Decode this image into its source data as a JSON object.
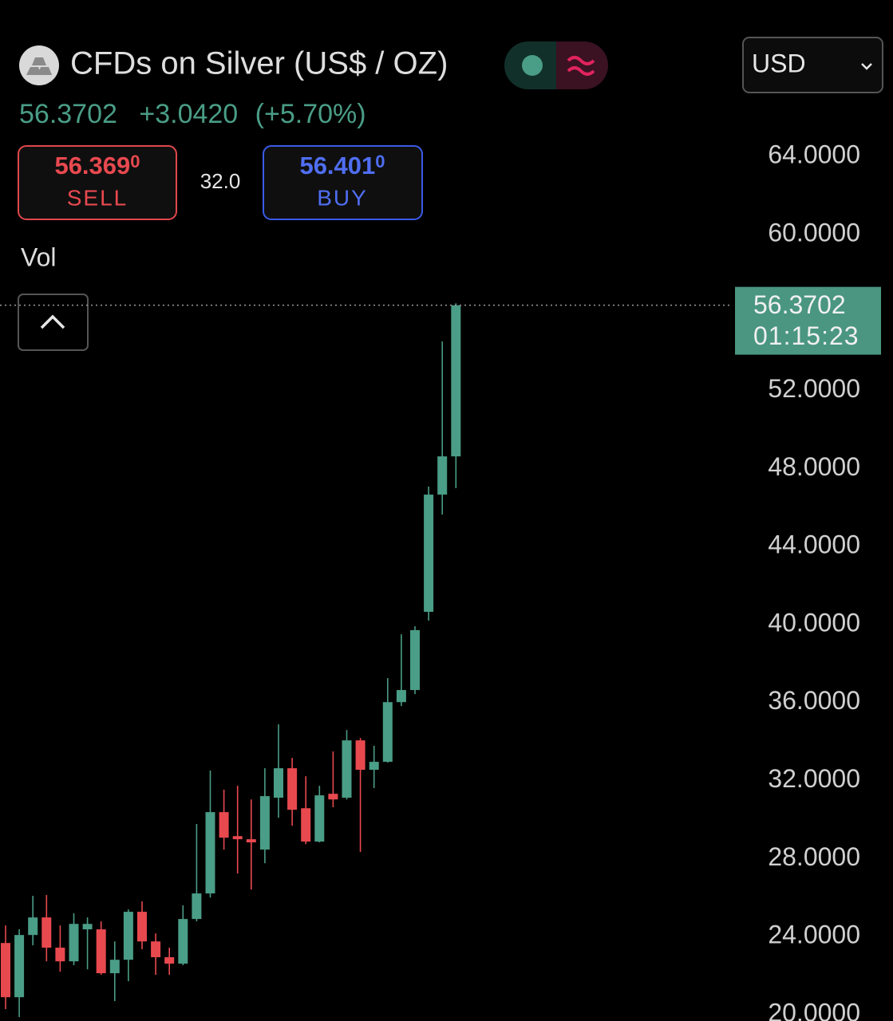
{
  "header": {
    "title": "CFDs on Silver (US$ / OZ)",
    "change": "+3.0420",
    "change_pct": "(+5.70%)",
    "sell_price": "56.369",
    "sell_price_sup": "0",
    "sell_label": "SELL",
    "spread": "32.0",
    "buy_price": "56.401",
    "buy_price_sup": "0",
    "buy_label": "BUY",
    "currency": "USD",
    "volume_label": "Vol"
  },
  "chart_data": {
    "type": "candlestick",
    "last_price": 56.3702,
    "countdown": "01:15:23",
    "up_color": "#4a9d86",
    "down_color": "#e8494f",
    "ylim": [
      19.67,
      72.02
    ],
    "yticks": [
      {
        "value": 20,
        "label": "20.0000"
      },
      {
        "value": 24,
        "label": "24.0000"
      },
      {
        "value": 28,
        "label": "28.0000"
      },
      {
        "value": 32,
        "label": "32.0000"
      },
      {
        "value": 36,
        "label": "36.0000"
      },
      {
        "value": 40,
        "label": "40.0000"
      },
      {
        "value": 44,
        "label": "44.0000"
      },
      {
        "value": 48,
        "label": "48.0000"
      },
      {
        "value": 52,
        "label": "52.0000"
      },
      {
        "value": 60,
        "label": "60.0000"
      },
      {
        "value": 64,
        "label": "64.0000"
      }
    ],
    "open": [
      23.67,
      20.89,
      24.08,
      24.98,
      23.43,
      22.73,
      24.37,
      24.37,
      22.12,
      22.81,
      25.27,
      23.75,
      22.94,
      22.61,
      24.9,
      26.21,
      30.38,
      29.15,
      28.99,
      28.46,
      31.12,
      32.63,
      30.58,
      28.87,
      31.32,
      31.12,
      34.06,
      32.55,
      32.96,
      36.02,
      36.64,
      40.65,
      46.66,
      48.62
    ],
    "high": [
      24.57,
      24.37,
      26.09,
      26.13,
      24.57,
      25.19,
      24.98,
      24.78,
      23.75,
      25.39,
      25.8,
      24.16,
      23.43,
      25.6,
      29.77,
      32.51,
      31.53,
      31.73,
      31.03,
      32.63,
      34.88,
      33.16,
      32.22,
      31.73,
      33.49,
      34.59,
      34.18,
      33.78,
      37.25,
      39.5,
      39.91,
      47.07,
      54.51,
      56.47
    ],
    "low": [
      20.28,
      19.87,
      23.55,
      22.73,
      22.2,
      22.53,
      22.32,
      22.04,
      20.69,
      21.71,
      23.35,
      22.04,
      22.04,
      22.53,
      24.78,
      26.0,
      28.46,
      27.23,
      26.41,
      27.76,
      30.09,
      29.68,
      28.74,
      28.83,
      30.63,
      31.03,
      28.34,
      31.61,
      32.92,
      35.82,
      36.43,
      40.2,
      45.64,
      46.99
    ],
    "close": [
      20.89,
      24.08,
      24.98,
      23.43,
      22.73,
      24.65,
      24.65,
      22.12,
      22.81,
      25.27,
      23.75,
      22.94,
      22.61,
      24.9,
      26.21,
      30.38,
      29.07,
      28.99,
      28.83,
      31.2,
      32.63,
      30.5,
      28.87,
      31.24,
      31.03,
      34.06,
      32.55,
      32.96,
      36.02,
      36.64,
      39.71,
      46.66,
      48.62,
      56.3702
    ]
  }
}
